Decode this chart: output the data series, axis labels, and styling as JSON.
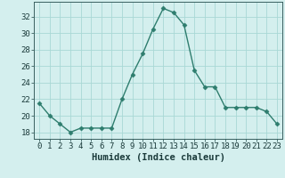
{
  "x": [
    0,
    1,
    2,
    3,
    4,
    5,
    6,
    7,
    8,
    9,
    10,
    11,
    12,
    13,
    14,
    15,
    16,
    17,
    18,
    19,
    20,
    21,
    22,
    23
  ],
  "y": [
    21.5,
    20.0,
    19.0,
    18.0,
    18.5,
    18.5,
    18.5,
    18.5,
    22.0,
    25.0,
    27.5,
    30.5,
    33.0,
    32.5,
    31.0,
    25.5,
    23.5,
    23.5,
    21.0,
    21.0,
    21.0,
    21.0,
    20.5,
    19.0
  ],
  "line_color": "#2e7d6e",
  "marker": "D",
  "marker_size": 2.5,
  "bg_color": "#d4efee",
  "grid_color": "#a8d8d5",
  "xlabel": "Humidex (Indice chaleur)",
  "ylabel_ticks": [
    18,
    20,
    22,
    24,
    26,
    28,
    30,
    32
  ],
  "xlabel_ticks": [
    0,
    1,
    2,
    3,
    4,
    5,
    6,
    7,
    8,
    9,
    10,
    11,
    12,
    13,
    14,
    15,
    16,
    17,
    18,
    19,
    20,
    21,
    22,
    23
  ],
  "ylim": [
    17.2,
    33.8
  ],
  "xlim": [
    -0.5,
    23.5
  ],
  "tick_color": "#1a3a3a",
  "xlabel_fontsize": 7.5,
  "tick_fontsize": 6.5,
  "spine_color": "#3a6060",
  "linewidth": 1.0
}
